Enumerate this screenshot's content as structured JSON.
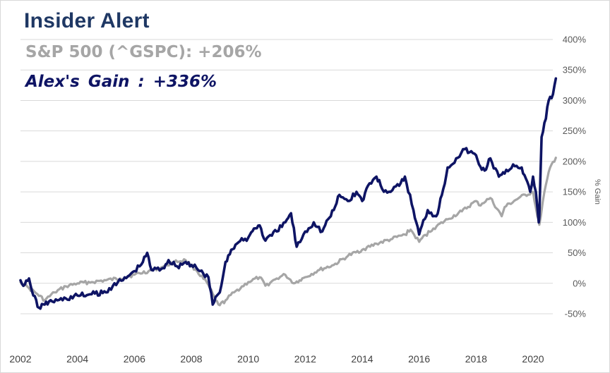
{
  "title": "Insider Alert",
  "annotations": {
    "sp500": "S&P 500 (^GSPC): +206%",
    "alex": "Alex's  Gain  : +336%"
  },
  "colors": {
    "title": "#1f3864",
    "sp500": "#a6a6a6",
    "alex": "#0e1464",
    "grid": "#d9d9d9"
  },
  "chart_data": {
    "type": "line",
    "title": "Insider Alert",
    "ylabel": "% Gain",
    "xlabel": "",
    "ylim": [
      -50,
      400
    ],
    "xlim": [
      2002,
      2020.8
    ],
    "y_ticks": [
      -50,
      0,
      50,
      100,
      150,
      200,
      250,
      300,
      350,
      400
    ],
    "y_tick_labels": [
      "-50%",
      "0%",
      "50%",
      "100%",
      "150%",
      "200%",
      "250%",
      "300%",
      "350%",
      "400%"
    ],
    "x_ticks": [
      2002,
      2004,
      2006,
      2008,
      2010,
      2012,
      2014,
      2016,
      2018,
      2020
    ],
    "x_tick_labels": [
      "2002",
      "2004",
      "2006",
      "2008",
      "2010",
      "2012",
      "2014",
      "2016",
      "2018",
      "2020"
    ],
    "y_axis_side": "right",
    "grid": "horizontal",
    "series": [
      {
        "name": "S&P 500 (^GSPC)",
        "color": "#a6a6a6",
        "x": [
          2002.0,
          2002.3,
          2002.6,
          2002.85,
          2003.2,
          2003.6,
          2004.0,
          2004.5,
          2005.0,
          2005.5,
          2006.0,
          2006.5,
          2007.0,
          2007.4,
          2007.8,
          2008.2,
          2008.6,
          2008.85,
          2009.0,
          2009.2,
          2009.5,
          2010.0,
          2010.4,
          2010.6,
          2011.0,
          2011.3,
          2011.6,
          2011.8,
          2012.0,
          2012.5,
          2013.0,
          2013.5,
          2014.0,
          2014.5,
          2015.0,
          2015.5,
          2015.7,
          2016.0,
          2016.1,
          2016.5,
          2017.0,
          2017.5,
          2018.0,
          2018.1,
          2018.5,
          2018.9,
          2019.0,
          2019.5,
          2020.0,
          2020.15,
          2020.22,
          2020.4,
          2020.6,
          2020.8
        ],
        "y": [
          2,
          -8,
          -18,
          -28,
          -15,
          -5,
          0,
          2,
          5,
          8,
          14,
          20,
          27,
          35,
          38,
          20,
          -3,
          -28,
          -36,
          -28,
          -15,
          2,
          10,
          -4,
          8,
          14,
          0,
          5,
          10,
          22,
          30,
          45,
          55,
          65,
          72,
          80,
          88,
          68,
          74,
          90,
          105,
          118,
          135,
          128,
          140,
          110,
          125,
          140,
          150,
          110,
          96,
          150,
          190,
          206
        ]
      },
      {
        "name": "Alex's Gain",
        "color": "#0e1464",
        "x": [
          2002.0,
          2002.15,
          2002.3,
          2002.45,
          2002.65,
          2002.85,
          2003.0,
          2003.3,
          2003.6,
          2004.0,
          2004.5,
          2005.0,
          2005.3,
          2005.6,
          2006.0,
          2006.3,
          2006.45,
          2006.6,
          2007.0,
          2007.2,
          2007.5,
          2007.8,
          2008.0,
          2008.3,
          2008.6,
          2008.75,
          2008.9,
          2009.0,
          2009.2,
          2009.4,
          2009.6,
          2010.0,
          2010.2,
          2010.4,
          2010.6,
          2011.0,
          2011.3,
          2011.5,
          2011.7,
          2012.0,
          2012.3,
          2012.6,
          2012.8,
          2013.0,
          2013.2,
          2013.5,
          2013.8,
          2014.0,
          2014.2,
          2014.5,
          2014.7,
          2015.0,
          2015.3,
          2015.5,
          2015.8,
          2016.0,
          2016.1,
          2016.3,
          2016.6,
          2016.8,
          2017.0,
          2017.3,
          2017.6,
          2018.0,
          2018.1,
          2018.3,
          2018.5,
          2018.8,
          2019.0,
          2019.3,
          2019.6,
          2019.9,
          2020.0,
          2020.1,
          2020.2,
          2020.22,
          2020.3,
          2020.45,
          2020.55,
          2020.7,
          2020.8
        ],
        "y": [
          5,
          -2,
          8,
          -20,
          -40,
          -35,
          -30,
          -28,
          -25,
          -20,
          -18,
          -15,
          0,
          5,
          20,
          35,
          50,
          22,
          25,
          38,
          28,
          35,
          30,
          20,
          10,
          -35,
          -20,
          -15,
          35,
          55,
          65,
          75,
          90,
          95,
          70,
          85,
          100,
          115,
          60,
          85,
          100,
          85,
          105,
          120,
          145,
          135,
          150,
          135,
          160,
          175,
          155,
          150,
          160,
          175,
          120,
          80,
          95,
          120,
          110,
          145,
          190,
          205,
          220,
          210,
          195,
          185,
          205,
          175,
          180,
          195,
          190,
          150,
          175,
          150,
          100,
          110,
          240,
          270,
          300,
          310,
          336
        ]
      }
    ]
  }
}
